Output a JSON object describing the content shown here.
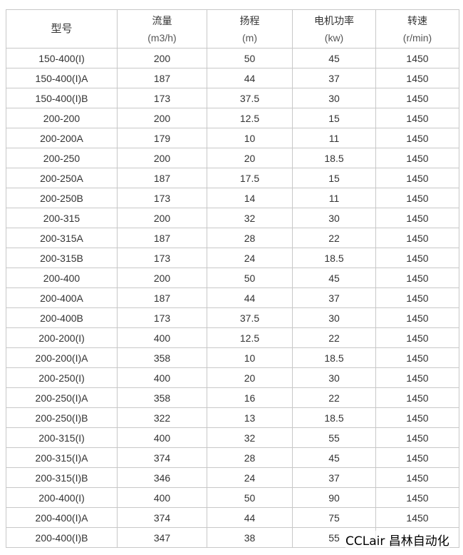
{
  "headers": [
    {
      "name": "型号",
      "unit": ""
    },
    {
      "name": "流量",
      "unit": "(m3/h)"
    },
    {
      "name": "扬程",
      "unit": "(m)"
    },
    {
      "name": "电机功率",
      "unit": "(kw)"
    },
    {
      "name": "转速",
      "unit": "(r/min)"
    }
  ],
  "rows": [
    [
      "150-400(I)",
      "200",
      "50",
      "45",
      "1450"
    ],
    [
      "150-400(I)A",
      "187",
      "44",
      "37",
      "1450"
    ],
    [
      "150-400(I)B",
      "173",
      "37.5",
      "30",
      "1450"
    ],
    [
      "200-200",
      "200",
      "12.5",
      "15",
      "1450"
    ],
    [
      "200-200A",
      "179",
      "10",
      "11",
      "1450"
    ],
    [
      "200-250",
      "200",
      "20",
      "18.5",
      "1450"
    ],
    [
      "200-250A",
      "187",
      "17.5",
      "15",
      "1450"
    ],
    [
      "200-250B",
      "173",
      "14",
      "11",
      "1450"
    ],
    [
      "200-315",
      "200",
      "32",
      "30",
      "1450"
    ],
    [
      "200-315A",
      "187",
      "28",
      "22",
      "1450"
    ],
    [
      "200-315B",
      "173",
      "24",
      "18.5",
      "1450"
    ],
    [
      "200-400",
      "200",
      "50",
      "45",
      "1450"
    ],
    [
      "200-400A",
      "187",
      "44",
      "37",
      "1450"
    ],
    [
      "200-400B",
      "173",
      "37.5",
      "30",
      "1450"
    ],
    [
      "200-200(I)",
      "400",
      "12.5",
      "22",
      "1450"
    ],
    [
      "200-200(I)A",
      "358",
      "10",
      "18.5",
      "1450"
    ],
    [
      "200-250(I)",
      "400",
      "20",
      "30",
      "1450"
    ],
    [
      "200-250(I)A",
      "358",
      "16",
      "22",
      "1450"
    ],
    [
      "200-250(I)B",
      "322",
      "13",
      "18.5",
      "1450"
    ],
    [
      "200-315(I)",
      "400",
      "32",
      "55",
      "1450"
    ],
    [
      "200-315(I)A",
      "374",
      "28",
      "45",
      "1450"
    ],
    [
      "200-315(I)B",
      "346",
      "24",
      "37",
      "1450"
    ],
    [
      "200-400(I)",
      "400",
      "50",
      "90",
      "1450"
    ],
    [
      "200-400(I)A",
      "374",
      "44",
      "75",
      "1450"
    ],
    [
      "200-400(I)B",
      "347",
      "38",
      "55",
      ""
    ]
  ],
  "watermark": "CCLair 昌林自动化"
}
